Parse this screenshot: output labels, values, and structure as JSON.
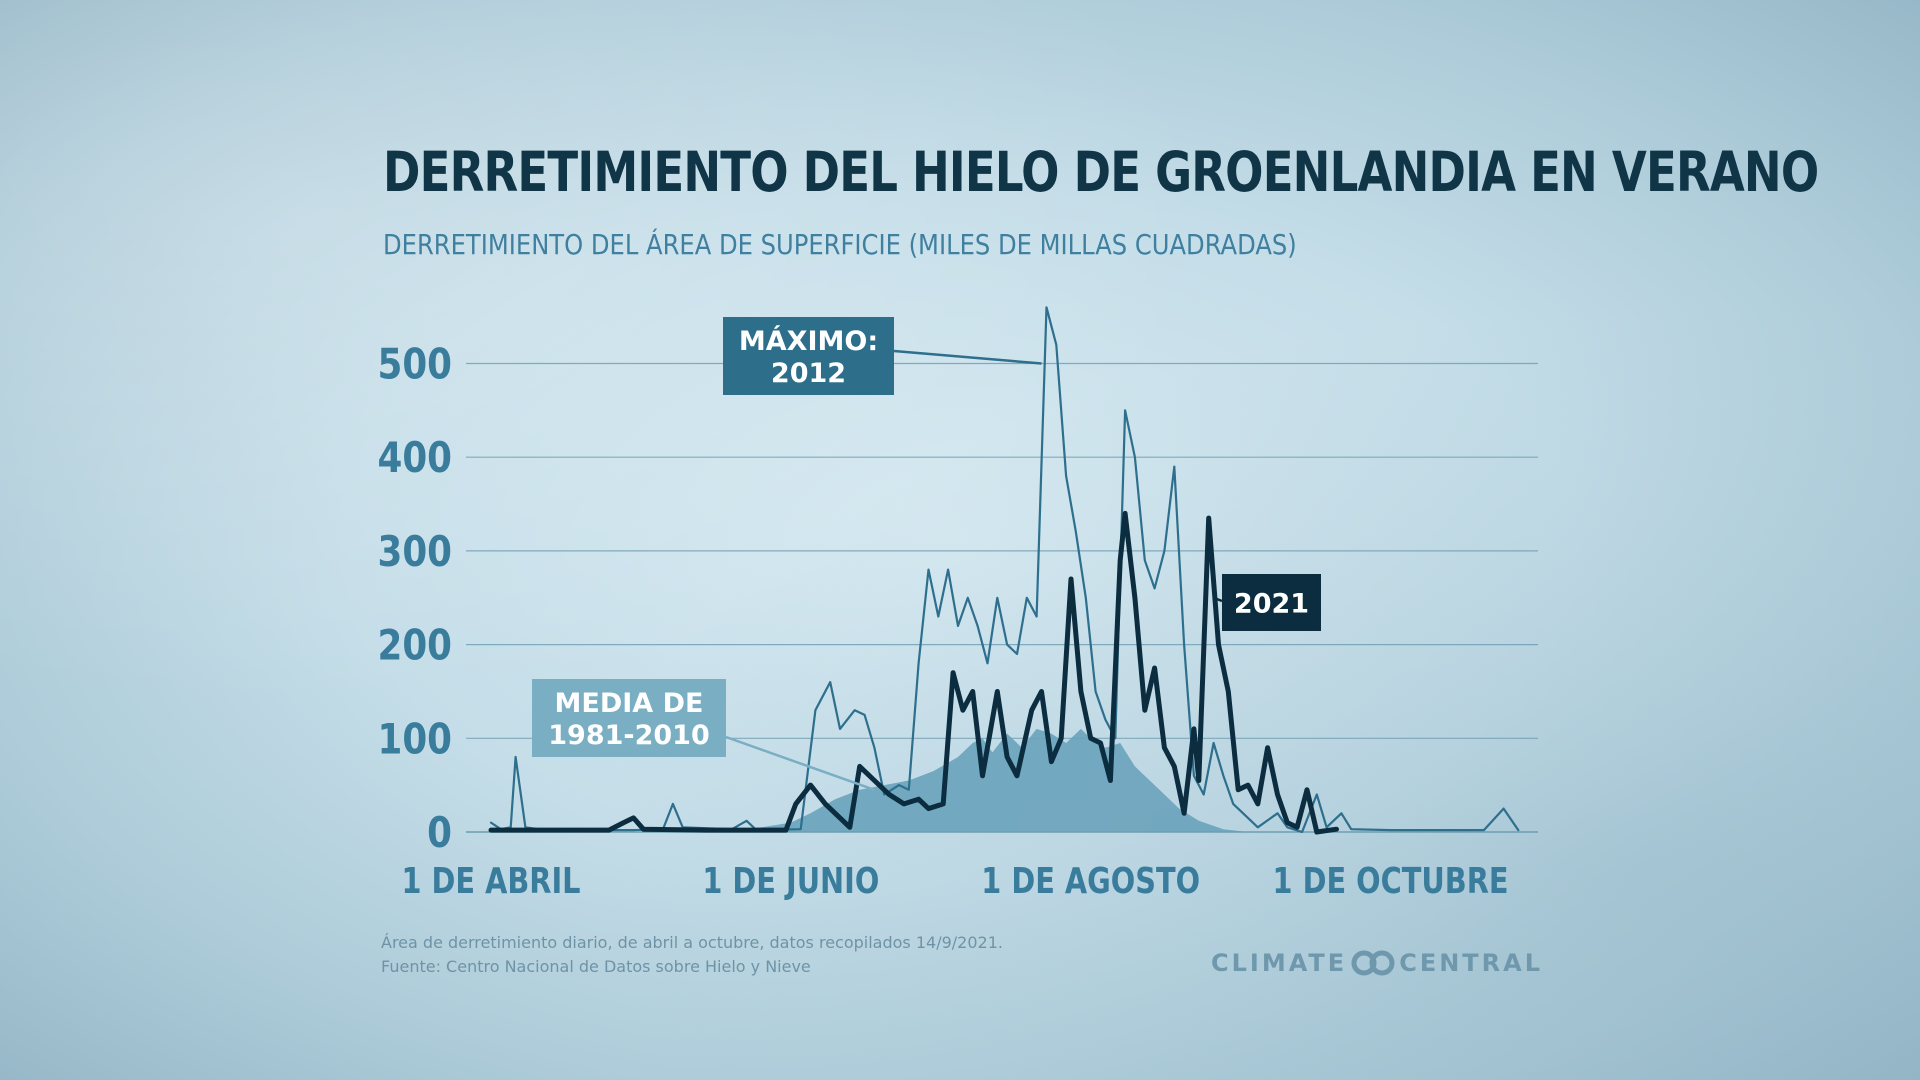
{
  "header": {
    "title": "DERRETIMIENTO DEL HIELO DE GROENLANDIA EN VERANO",
    "subtitle": "DERRETIMIENTO DEL ÁREA DE SUPERFICIE (MILES DE MILLAS CUADRADAS)"
  },
  "footer": {
    "note_line1": "Área de derretimiento diario, de abril a octubre, datos recopilados 14/9/2021.",
    "note_line2": "Fuente: Centro Nacional de Datos sobre Hielo y Nieve",
    "brand_left": "CLIMATE",
    "brand_right": "CENTRAL",
    "brand_logo_icon": "interlocking-rings-icon"
  },
  "colors": {
    "title": "#0f3547",
    "subtitle": "#3f7f9f",
    "axis_labels": "#3a7c9c",
    "grid": "#6e9db2",
    "series_2012": "#2d6f8c",
    "series_2021": "#0b2d3f",
    "average_fill": "#6aa3bb",
    "label_2012_bg": "#2d6e8b",
    "label_2021_bg": "#0b2d3f",
    "label_avg_bg": "#7aaec3"
  },
  "chart_data": {
    "type": "line",
    "title": "DERRETIMIENTO DEL HIELO DE GROENLANDIA EN VERANO",
    "subtitle": "DERRETIMIENTO DEL ÁREA DE SUPERFICIE (MILES DE MILLAS CUADRADAS)",
    "xlabel": "",
    "ylabel": "",
    "x_range": [
      "2021-04-01",
      "2021-10-31"
    ],
    "ylim": [
      0,
      560
    ],
    "yticks": [
      0,
      100,
      200,
      300,
      400,
      500
    ],
    "ytick_labels": [
      "0",
      "100",
      "200",
      "300",
      "400",
      "500"
    ],
    "xticks": [
      {
        "date": "2021-04-01",
        "label": "1 DE ABRIL"
      },
      {
        "date": "2021-06-01",
        "label": "1 DE JUNIO"
      },
      {
        "date": "2021-08-01",
        "label": "1 DE AGOSTO"
      },
      {
        "date": "2021-10-01",
        "label": "1 DE OCTUBRE"
      }
    ],
    "grid": true,
    "series": [
      {
        "name": "MEDIA DE 1981-2010",
        "style": "area",
        "points": [
          [
            "2021-04-01",
            0
          ],
          [
            "2021-05-20",
            0
          ],
          [
            "2021-06-01",
            10
          ],
          [
            "2021-06-05",
            20
          ],
          [
            "2021-06-10",
            35
          ],
          [
            "2021-06-15",
            45
          ],
          [
            "2021-06-20",
            50
          ],
          [
            "2021-06-25",
            55
          ],
          [
            "2021-06-30",
            65
          ],
          [
            "2021-07-05",
            80
          ],
          [
            "2021-07-08",
            95
          ],
          [
            "2021-07-10",
            100
          ],
          [
            "2021-07-12",
            85
          ],
          [
            "2021-07-15",
            105
          ],
          [
            "2021-07-18",
            90
          ],
          [
            "2021-07-21",
            110
          ],
          [
            "2021-07-24",
            105
          ],
          [
            "2021-07-27",
            95
          ],
          [
            "2021-07-30",
            110
          ],
          [
            "2021-08-01",
            100
          ],
          [
            "2021-08-04",
            90
          ],
          [
            "2021-08-07",
            95
          ],
          [
            "2021-08-10",
            70
          ],
          [
            "2021-08-13",
            55
          ],
          [
            "2021-08-16",
            40
          ],
          [
            "2021-08-19",
            25
          ],
          [
            "2021-08-23",
            12
          ],
          [
            "2021-08-28",
            3
          ],
          [
            "2021-09-02",
            0
          ],
          [
            "2021-10-31",
            0
          ]
        ]
      },
      {
        "name": "MÁXIMO: 2012",
        "style": "line",
        "points": [
          [
            "2021-04-01",
            10
          ],
          [
            "2021-04-03",
            3
          ],
          [
            "2021-04-05",
            5
          ],
          [
            "2021-04-06",
            80
          ],
          [
            "2021-04-08",
            5
          ],
          [
            "2021-04-12",
            2
          ],
          [
            "2021-04-30",
            2
          ],
          [
            "2021-05-06",
            3
          ],
          [
            "2021-05-08",
            30
          ],
          [
            "2021-05-10",
            5
          ],
          [
            "2021-05-20",
            3
          ],
          [
            "2021-05-23",
            12
          ],
          [
            "2021-05-25",
            2
          ],
          [
            "2021-06-03",
            3
          ],
          [
            "2021-06-06",
            130
          ],
          [
            "2021-06-09",
            160
          ],
          [
            "2021-06-11",
            110
          ],
          [
            "2021-06-14",
            130
          ],
          [
            "2021-06-16",
            125
          ],
          [
            "2021-06-18",
            90
          ],
          [
            "2021-06-20",
            40
          ],
          [
            "2021-06-23",
            50
          ],
          [
            "2021-06-25",
            45
          ],
          [
            "2021-06-27",
            180
          ],
          [
            "2021-06-29",
            280
          ],
          [
            "2021-07-01",
            230
          ],
          [
            "2021-07-03",
            280
          ],
          [
            "2021-07-05",
            220
          ],
          [
            "2021-07-07",
            250
          ],
          [
            "2021-07-09",
            220
          ],
          [
            "2021-07-11",
            180
          ],
          [
            "2021-07-13",
            250
          ],
          [
            "2021-07-15",
            200
          ],
          [
            "2021-07-17",
            190
          ],
          [
            "2021-07-19",
            250
          ],
          [
            "2021-07-21",
            230
          ],
          [
            "2021-07-23",
            560
          ],
          [
            "2021-07-25",
            520
          ],
          [
            "2021-07-27",
            380
          ],
          [
            "2021-07-29",
            320
          ],
          [
            "2021-07-31",
            250
          ],
          [
            "2021-08-02",
            150
          ],
          [
            "2021-08-04",
            120
          ],
          [
            "2021-08-06",
            100
          ],
          [
            "2021-08-08",
            450
          ],
          [
            "2021-08-10",
            400
          ],
          [
            "2021-08-12",
            290
          ],
          [
            "2021-08-14",
            260
          ],
          [
            "2021-08-16",
            300
          ],
          [
            "2021-08-18",
            390
          ],
          [
            "2021-08-20",
            200
          ],
          [
            "2021-08-22",
            60
          ],
          [
            "2021-08-24",
            40
          ],
          [
            "2021-08-26",
            95
          ],
          [
            "2021-08-28",
            60
          ],
          [
            "2021-08-30",
            30
          ],
          [
            "2021-09-01",
            20
          ],
          [
            "2021-09-04",
            5
          ],
          [
            "2021-09-08",
            20
          ],
          [
            "2021-09-10",
            5
          ],
          [
            "2021-09-13",
            0
          ],
          [
            "2021-09-16",
            40
          ],
          [
            "2021-09-18",
            5
          ],
          [
            "2021-09-21",
            20
          ],
          [
            "2021-09-23",
            3
          ],
          [
            "2021-10-01",
            2
          ],
          [
            "2021-10-20",
            2
          ],
          [
            "2021-10-24",
            25
          ],
          [
            "2021-10-27",
            2
          ]
        ]
      },
      {
        "name": "2021",
        "style": "line",
        "points": [
          [
            "2021-04-01",
            2
          ],
          [
            "2021-04-25",
            2
          ],
          [
            "2021-04-28",
            10
          ],
          [
            "2021-04-30",
            15
          ],
          [
            "2021-05-02",
            3
          ],
          [
            "2021-05-15",
            2
          ],
          [
            "2021-05-31",
            2
          ],
          [
            "2021-06-02",
            30
          ],
          [
            "2021-06-05",
            50
          ],
          [
            "2021-06-08",
            30
          ],
          [
            "2021-06-11",
            15
          ],
          [
            "2021-06-13",
            5
          ],
          [
            "2021-06-15",
            70
          ],
          [
            "2021-06-18",
            55
          ],
          [
            "2021-06-21",
            40
          ],
          [
            "2021-06-24",
            30
          ],
          [
            "2021-06-27",
            35
          ],
          [
            "2021-06-29",
            25
          ],
          [
            "2021-07-02",
            30
          ],
          [
            "2021-07-04",
            170
          ],
          [
            "2021-07-06",
            130
          ],
          [
            "2021-07-08",
            150
          ],
          [
            "2021-07-10",
            60
          ],
          [
            "2021-07-13",
            150
          ],
          [
            "2021-07-15",
            80
          ],
          [
            "2021-07-17",
            60
          ],
          [
            "2021-07-20",
            130
          ],
          [
            "2021-07-22",
            150
          ],
          [
            "2021-07-24",
            75
          ],
          [
            "2021-07-26",
            100
          ],
          [
            "2021-07-28",
            270
          ],
          [
            "2021-07-30",
            150
          ],
          [
            "2021-08-01",
            100
          ],
          [
            "2021-08-03",
            95
          ],
          [
            "2021-08-05",
            55
          ],
          [
            "2021-08-07",
            290
          ],
          [
            "2021-08-08",
            340
          ],
          [
            "2021-08-10",
            250
          ],
          [
            "2021-08-12",
            130
          ],
          [
            "2021-08-14",
            175
          ],
          [
            "2021-08-16",
            90
          ],
          [
            "2021-08-18",
            70
          ],
          [
            "2021-08-20",
            20
          ],
          [
            "2021-08-22",
            110
          ],
          [
            "2021-08-23",
            55
          ],
          [
            "2021-08-25",
            335
          ],
          [
            "2021-08-27",
            200
          ],
          [
            "2021-08-29",
            150
          ],
          [
            "2021-08-31",
            45
          ],
          [
            "2021-09-02",
            50
          ],
          [
            "2021-09-04",
            30
          ],
          [
            "2021-09-06",
            90
          ],
          [
            "2021-09-08",
            40
          ],
          [
            "2021-09-10",
            10
          ],
          [
            "2021-09-12",
            5
          ],
          [
            "2021-09-14",
            45
          ],
          [
            "2021-09-16",
            0
          ],
          [
            "2021-09-20",
            3
          ]
        ]
      }
    ],
    "annotations": [
      {
        "text": "MÁXIMO:\n2012",
        "series": "MÁXIMO: 2012",
        "anchor": [
          "2021-07-22",
          500
        ]
      },
      {
        "text": "2021",
        "series": "2021",
        "anchor": [
          "2021-08-26",
          250
        ]
      },
      {
        "text": "MEDIA DE\n1981-2010",
        "series": "MEDIA DE 1981-2010",
        "anchor": [
          "2021-06-18",
          45
        ]
      }
    ]
  }
}
